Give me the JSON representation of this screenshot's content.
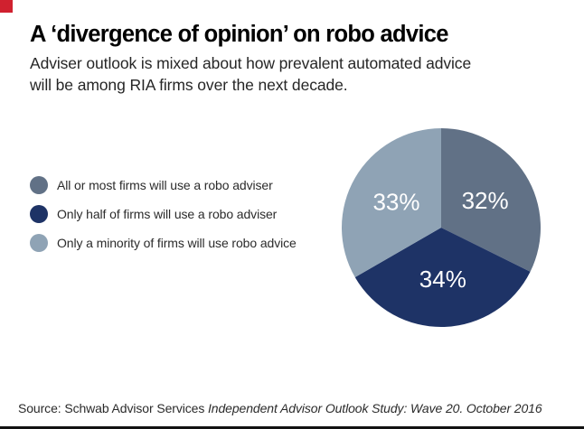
{
  "brand": {
    "corner_chip_color": "#d0212f",
    "bottom_rule_color": "#111111"
  },
  "header": {
    "title": "A ‘divergence of opinion’ on robo advice",
    "subtitle": "Adviser outlook is mixed about how prevalent automated advice\nwill be among RIA firms over the next decade."
  },
  "legend": {
    "items": [
      {
        "label": "All or most firms will use a robo adviser",
        "color": "#617186"
      },
      {
        "label": "Only half of firms will use a robo adviser",
        "color": "#1e3366"
      },
      {
        "label": "Only a minority of firms will use robo advice",
        "color": "#8fa3b5"
      }
    ]
  },
  "chart_data": {
    "type": "pie",
    "title": "A ‘divergence of opinion’ on robo advice",
    "series": [
      {
        "name": "All or most firms will use a robo adviser",
        "value": 32,
        "label": "32%",
        "color": "#617186"
      },
      {
        "name": "Only half of firms will use a robo adviser",
        "value": 34,
        "label": "34%",
        "color": "#1e3366"
      },
      {
        "name": "Only a minority of firms will use robo advice",
        "value": 33,
        "label": "33%",
        "color": "#8fa3b5"
      }
    ],
    "start_angle_deg": 0,
    "direction": "clockwise",
    "label_color": "#ffffff",
    "legend_position": "left"
  },
  "source": {
    "prefix": "Source: Schwab Advisor Services ",
    "citation_italic": "Independent Advisor Outlook Study: Wave 20. October 2016"
  }
}
